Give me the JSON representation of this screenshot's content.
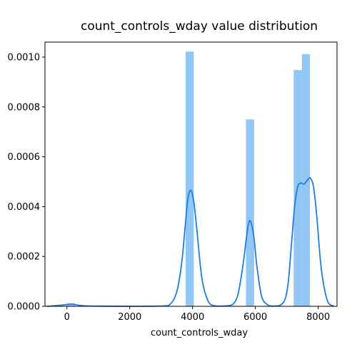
{
  "chart_data": {
    "type": "bar",
    "title": "count_controls_wday value distribution",
    "xlabel": "count_controls_wday",
    "ylabel": "",
    "xlim": [
      -700,
      8600
    ],
    "ylim": [
      0,
      0.00106
    ],
    "x_ticks": [
      0,
      2000,
      4000,
      6000,
      8000
    ],
    "x_tick_labels": [
      "0",
      "2000",
      "4000",
      "6000",
      "8000"
    ],
    "y_ticks": [
      0,
      0.0002,
      0.0004,
      0.0006,
      0.0008,
      0.001
    ],
    "y_tick_labels": [
      "0.0000",
      "0.0002",
      "0.0004",
      "0.0006",
      "0.0008",
      "0.0010"
    ],
    "grid": false,
    "colors": {
      "bars": "#92c6f5",
      "kde": "#1a7fe0"
    },
    "histogram": {
      "bins": [
        {
          "x0": 0,
          "x1": 260,
          "density": 1.2e-05
        },
        {
          "x0": 3780,
          "x1": 4040,
          "density": 0.001022
        },
        {
          "x0": 5700,
          "x1": 5960,
          "density": 0.00075
        },
        {
          "x0": 7220,
          "x1": 7480,
          "density": 0.000948
        },
        {
          "x0": 7480,
          "x1": 7740,
          "density": 0.001012
        }
      ]
    },
    "kde": {
      "x": [
        -650,
        -300,
        0,
        100,
        200,
        400,
        800,
        2000,
        3000,
        3300,
        3500,
        3650,
        3750,
        3850,
        3950,
        4050,
        4150,
        4300,
        4500,
        4700,
        4900,
        5100,
        5300,
        5450,
        5600,
        5700,
        5780,
        5850,
        5950,
        6050,
        6200,
        6400,
        6600,
        6800,
        6950,
        7050,
        7150,
        7250,
        7350,
        7450,
        7550,
        7650,
        7750,
        7850,
        7950,
        8100,
        8300,
        8500
      ],
      "y": [
        0,
        3e-06,
        7e-06,
        9e-06,
        8e-06,
        4e-06,
        1e-06,
        0,
        1e-06,
        1e-05,
        6e-05,
        0.00017,
        0.0003,
        0.00043,
        0.000465,
        0.00041,
        0.00029,
        0.00011,
        2e-05,
        2e-06,
        1e-06,
        2e-06,
        1e-05,
        5e-05,
        0.00016,
        0.00026,
        0.00033,
        0.00034,
        0.00028,
        0.00016,
        4e-05,
        5e-06,
        1e-06,
        5e-06,
        3e-05,
        0.0001,
        0.00025,
        0.0004,
        0.00048,
        0.000495,
        0.00049,
        0.000505,
        0.000515,
        0.00048,
        0.00037,
        0.00015,
        2e-05,
        1e-06
      ]
    }
  }
}
